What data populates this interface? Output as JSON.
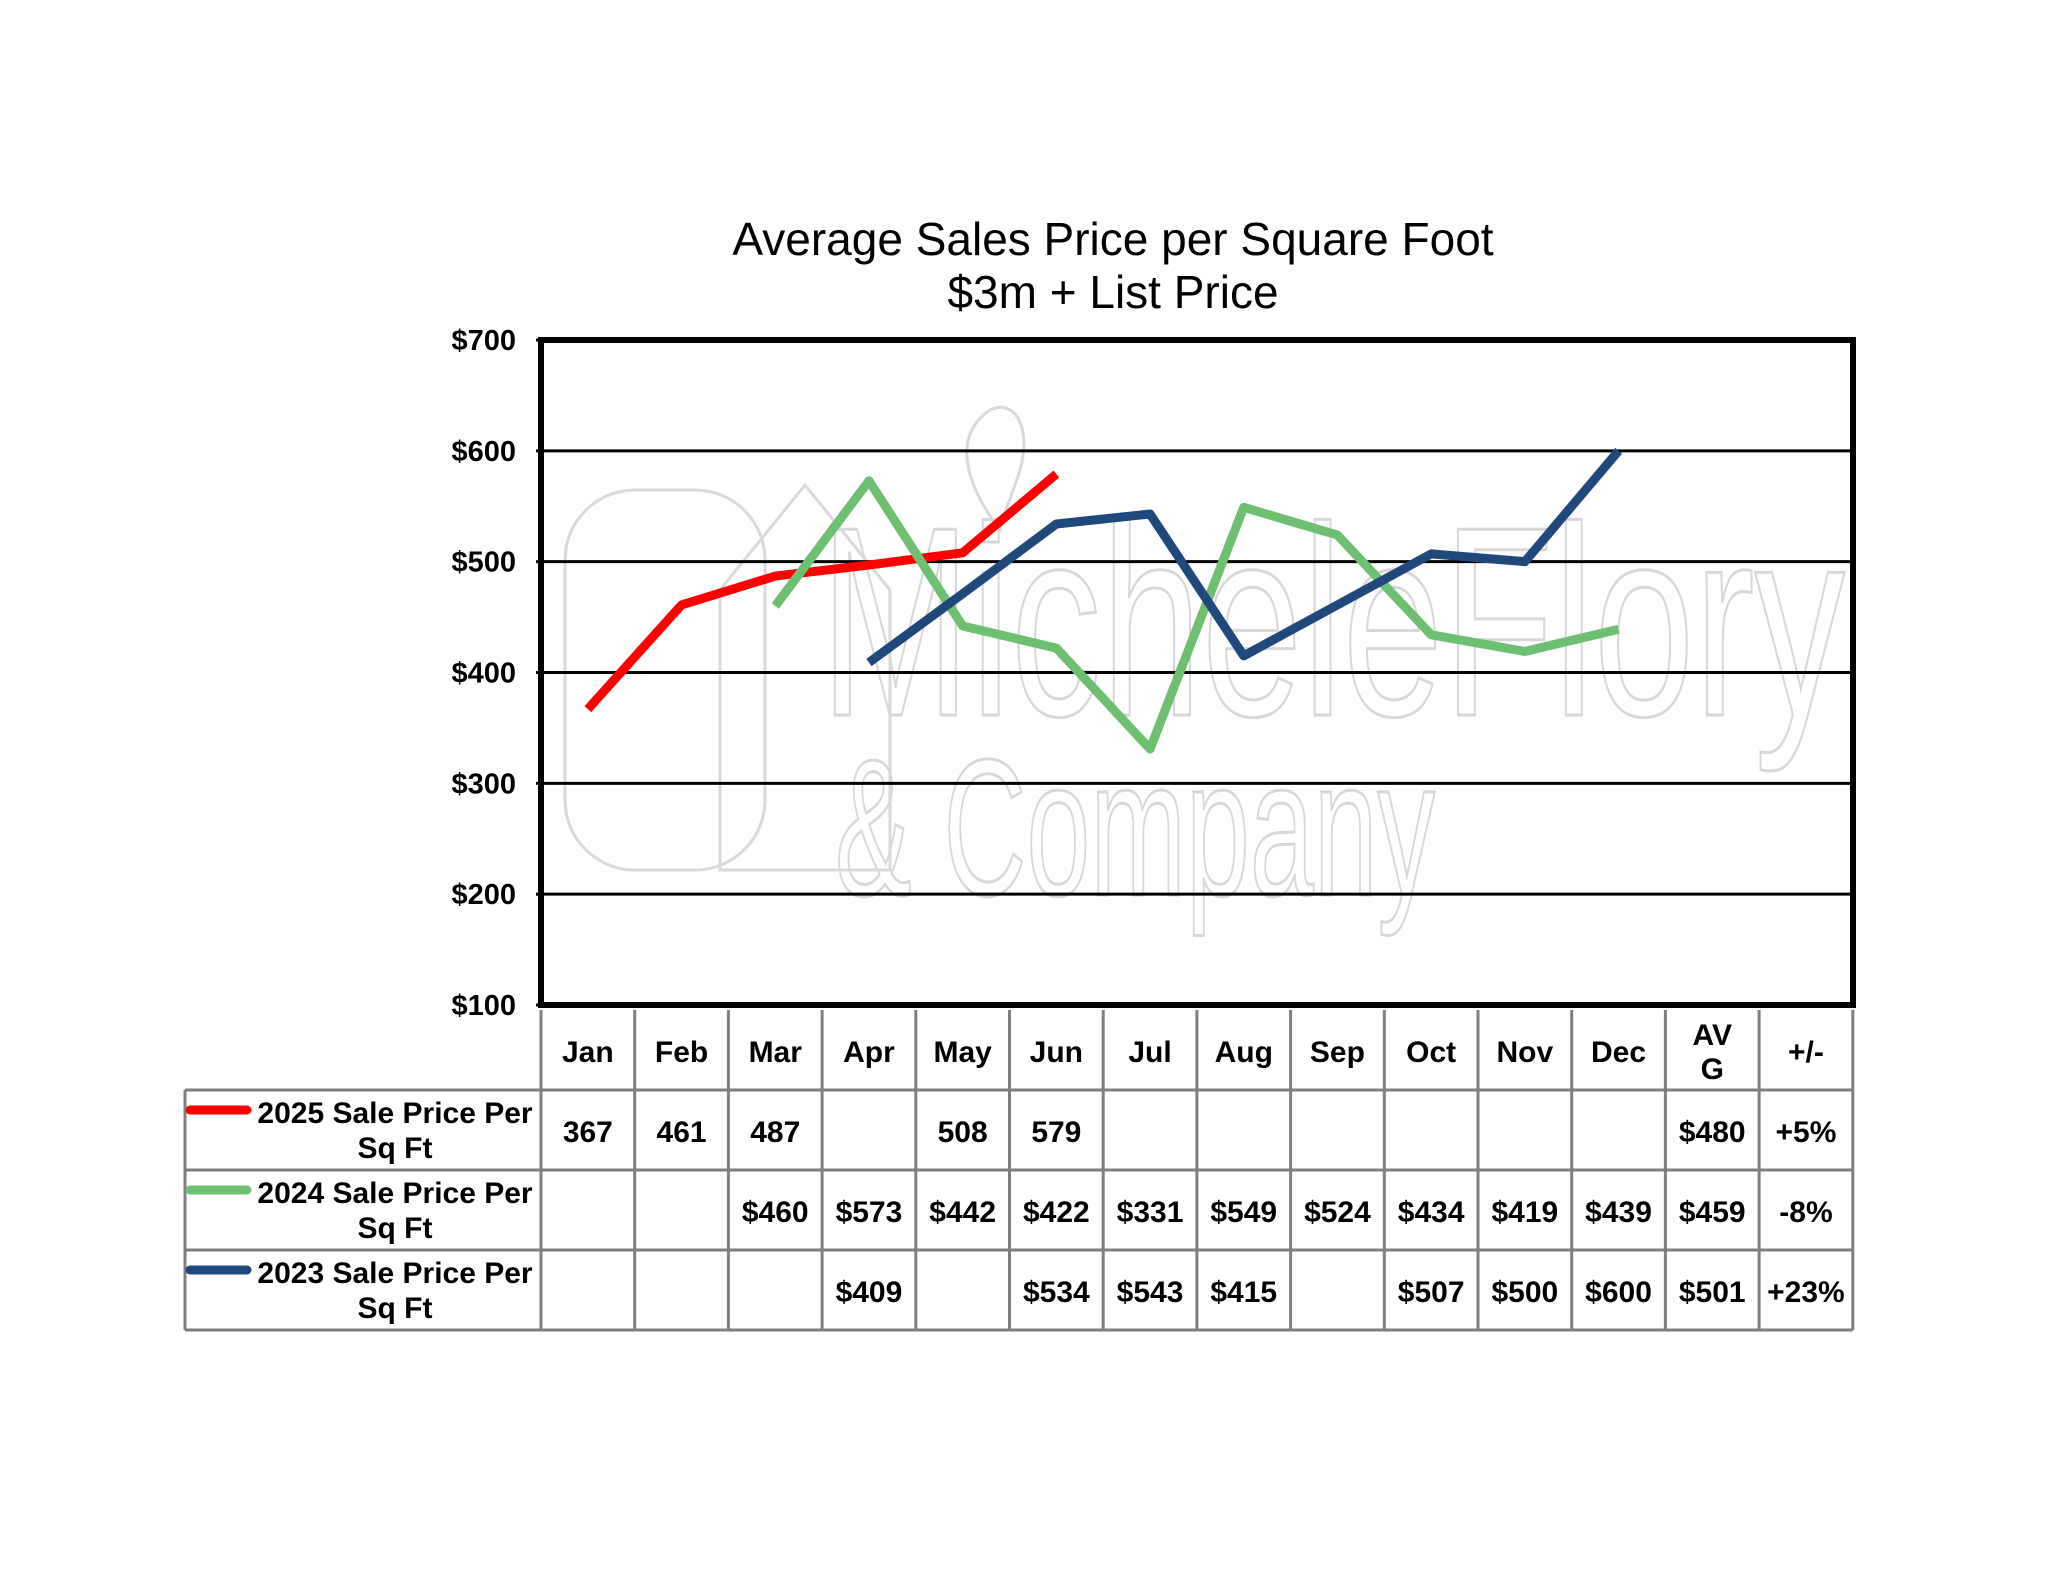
{
  "chart_data": {
    "type": "line",
    "title": "Average Sales Price per Square Foot",
    "subtitle": "$3m + List Price",
    "categories": [
      "Jan",
      "Feb",
      "Mar",
      "Apr",
      "May",
      "Jun",
      "Jul",
      "Aug",
      "Sep",
      "Oct",
      "Nov",
      "Dec"
    ],
    "ylim": [
      100,
      700
    ],
    "y_ticks": [
      100,
      200,
      300,
      400,
      500,
      600,
      700
    ],
    "y_tick_labels": [
      "$100",
      "$200",
      "$300",
      "$400",
      "$500",
      "$600",
      "$700"
    ],
    "grid": true,
    "series": [
      {
        "name": "2025 Sale Price Per Sq Ft",
        "color": "#ff0000",
        "values": [
          367,
          461,
          487,
          null,
          508,
          579,
          null,
          null,
          null,
          null,
          null,
          null
        ],
        "line_values": [
          367,
          461,
          487,
          497,
          508,
          579,
          null,
          null,
          null,
          null,
          null,
          null
        ],
        "avg": "$480",
        "change": "+5%"
      },
      {
        "name": "2024 Sale Price Per Sq Ft",
        "color": "#6cc070",
        "values": [
          null,
          null,
          460,
          573,
          442,
          422,
          331,
          549,
          524,
          434,
          419,
          439
        ],
        "line_values": [
          null,
          null,
          460,
          573,
          442,
          422,
          331,
          549,
          524,
          434,
          419,
          439
        ],
        "avg": "$459",
        "change": "-8%"
      },
      {
        "name": "2023 Sale Price Per Sq Ft",
        "color": "#1f497d",
        "values": [
          null,
          null,
          null,
          409,
          null,
          534,
          543,
          415,
          null,
          507,
          500,
          600
        ],
        "line_values": [
          null,
          null,
          null,
          409,
          471,
          534,
          543,
          415,
          461,
          507,
          500,
          600
        ],
        "avg": "$501",
        "change": "+23%"
      }
    ],
    "table": {
      "extra_headers": [
        "AV\nG",
        "+/-"
      ],
      "rows": [
        [
          "367",
          "461",
          "487",
          "",
          "508",
          "579",
          "",
          "",
          "",
          "",
          "",
          "",
          "$480",
          "+5%"
        ],
        [
          "",
          "",
          "$460",
          "$573",
          "$442",
          "$422",
          "$331",
          "$549",
          "$524",
          "$434",
          "$419",
          "$439",
          "$459",
          "-8%"
        ],
        [
          "",
          "",
          "",
          "$409",
          "",
          "$534",
          "$543",
          "$415",
          "",
          "$507",
          "$500",
          "$600",
          "$501",
          "+23%"
        ]
      ]
    }
  },
  "watermark": {
    "line1": "MicheleFlory",
    "line2": "& Company"
  }
}
